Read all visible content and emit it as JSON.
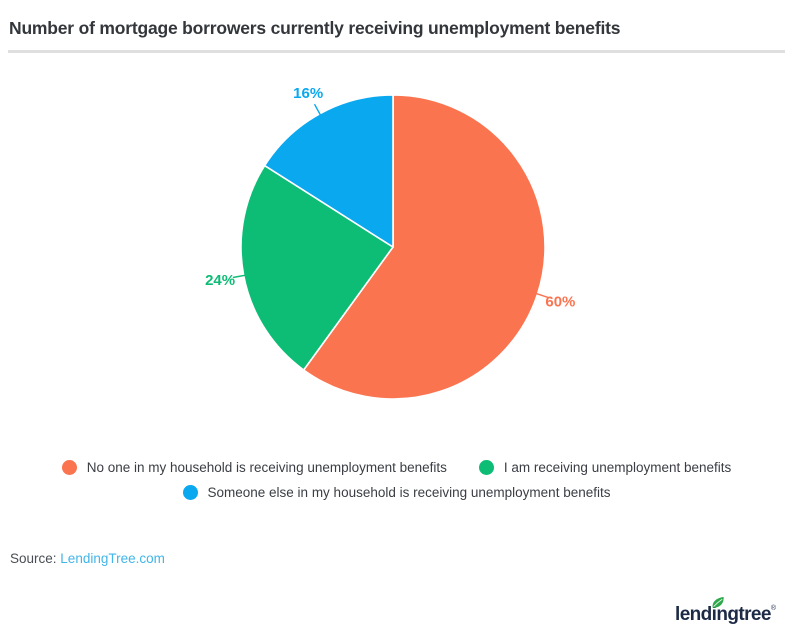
{
  "header": {
    "title": "Number of mortgage borrowers currently receiving unemployment benefits"
  },
  "chart_data": {
    "type": "pie",
    "title": "Number of mortgage borrowers currently receiving unemployment benefits",
    "start_angle_deg": 0,
    "direction": "clockwise",
    "value_suffix": "%",
    "legend_position": "bottom",
    "slices": [
      {
        "label": "No one in my household is receiving unemployment benefits",
        "value": 60,
        "display": "60%",
        "color": "#FB7450"
      },
      {
        "label": "I am receiving unemployment benefits",
        "value": 24,
        "display": "24%",
        "color": "#0DBD75"
      },
      {
        "label": "Someone else in my household is receiving unemployment benefits",
        "value": 16,
        "display": "16%",
        "color": "#09A8EF"
      }
    ],
    "legend_rows": [
      [
        0,
        1
      ],
      [
        2
      ]
    ]
  },
  "footer": {
    "source_label": "Source:",
    "source_link": "LendingTree.com",
    "source_link_color": "#41B6E8"
  },
  "branding": {
    "logo_text": "lendingtree",
    "logo_mark": "®",
    "logo_color": "#1C2A45",
    "leaf_color": "#2FA84D"
  }
}
